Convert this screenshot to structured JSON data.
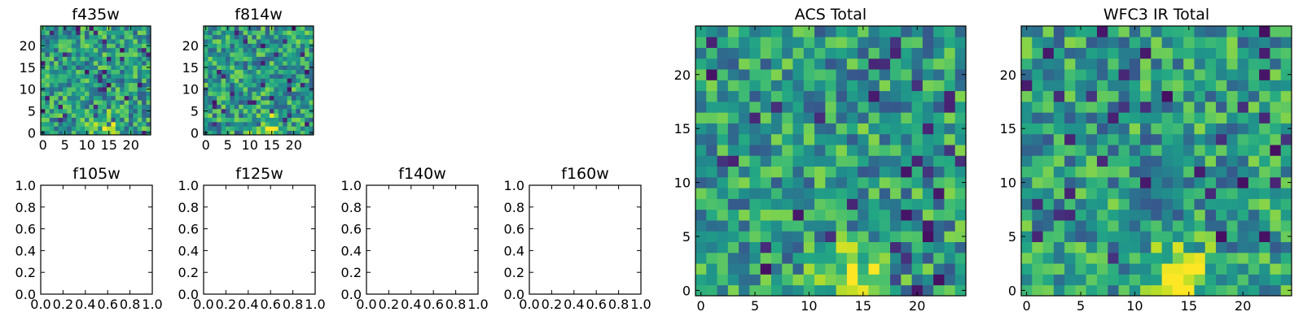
{
  "chart_data": [
    {
      "type": "heatmap",
      "title": "f435w",
      "xlim": [
        -0.5,
        24.5
      ],
      "ylim": [
        -0.5,
        24.5
      ],
      "xticks": [
        0,
        5,
        10,
        15,
        20
      ],
      "yticks": [
        0,
        5,
        10,
        15,
        20
      ],
      "xtick_labels": [
        "0",
        "5",
        "10",
        "15",
        "20"
      ],
      "ytick_labels": [
        "0",
        "5",
        "10",
        "15",
        "20"
      ],
      "grid_size": [
        25,
        25
      ],
      "colormap": "viridis"
    },
    {
      "type": "heatmap",
      "title": "f814w",
      "xlim": [
        -0.5,
        24.5
      ],
      "ylim": [
        -0.5,
        24.5
      ],
      "xticks": [
        0,
        5,
        10,
        15,
        20
      ],
      "yticks": [
        0,
        5,
        10,
        15,
        20
      ],
      "xtick_labels": [
        "0",
        "5",
        "10",
        "15",
        "20"
      ],
      "ytick_labels": [
        "0",
        "5",
        "10",
        "15",
        "20"
      ],
      "grid_size": [
        25,
        25
      ],
      "colormap": "viridis"
    },
    {
      "type": "heatmap",
      "title": "f105w",
      "xlim": [
        0,
        1
      ],
      "ylim": [
        0,
        1
      ],
      "xticks": [
        0,
        0.2,
        0.4,
        0.6,
        0.8,
        1.0
      ],
      "yticks": [
        0,
        0.2,
        0.4,
        0.6,
        0.8,
        1.0
      ],
      "xtick_labels": [
        "0.0",
        "0.2",
        "0.4",
        "0.6",
        "0.8",
        "1.0"
      ],
      "ytick_labels": [
        "0.0",
        "0.2",
        "0.4",
        "0.6",
        "0.8",
        "1.0"
      ],
      "empty": true
    },
    {
      "type": "heatmap",
      "title": "f125w",
      "xlim": [
        0,
        1
      ],
      "ylim": [
        0,
        1
      ],
      "xticks": [
        0,
        0.2,
        0.4,
        0.6,
        0.8,
        1.0
      ],
      "yticks": [
        0,
        0.2,
        0.4,
        0.6,
        0.8,
        1.0
      ],
      "xtick_labels": [
        "0.0",
        "0.2",
        "0.4",
        "0.6",
        "0.8",
        "1.0"
      ],
      "ytick_labels": [
        "0.0",
        "0.2",
        "0.4",
        "0.6",
        "0.8",
        "1.0"
      ],
      "empty": true
    },
    {
      "type": "heatmap",
      "title": "f140w",
      "xlim": [
        0,
        1
      ],
      "ylim": [
        0,
        1
      ],
      "xticks": [
        0,
        0.2,
        0.4,
        0.6,
        0.8,
        1.0
      ],
      "yticks": [
        0,
        0.2,
        0.4,
        0.6,
        0.8,
        1.0
      ],
      "xtick_labels": [
        "0.0",
        "0.2",
        "0.4",
        "0.6",
        "0.8",
        "1.0"
      ],
      "ytick_labels": [
        "0.0",
        "0.2",
        "0.4",
        "0.6",
        "0.8",
        "1.0"
      ],
      "empty": true
    },
    {
      "type": "heatmap",
      "title": "f160w",
      "xlim": [
        0,
        1
      ],
      "ylim": [
        0,
        1
      ],
      "xticks": [
        0,
        0.2,
        0.4,
        0.6,
        0.8,
        1.0
      ],
      "yticks": [
        0,
        0.2,
        0.4,
        0.6,
        0.8,
        1.0
      ],
      "xtick_labels": [
        "0.0",
        "0.2",
        "0.4",
        "0.6",
        "0.8",
        "1.0"
      ],
      "ytick_labels": [
        "0.0",
        "0.2",
        "0.4",
        "0.6",
        "0.8",
        "1.0"
      ],
      "empty": true
    },
    {
      "type": "heatmap",
      "title": "ACS Total",
      "xlim": [
        -0.5,
        24.5
      ],
      "ylim": [
        -0.5,
        24.5
      ],
      "xticks": [
        0,
        5,
        10,
        15,
        20
      ],
      "yticks": [
        0,
        5,
        10,
        15,
        20
      ],
      "xtick_labels": [
        "0",
        "5",
        "10",
        "15",
        "20"
      ],
      "ytick_labels": [
        "0",
        "5",
        "10",
        "15",
        "20"
      ],
      "grid_size": [
        25,
        25
      ],
      "colormap": "viridis"
    },
    {
      "type": "heatmap",
      "title": "WFC3 IR Total",
      "xlim": [
        -0.5,
        24.5
      ],
      "ylim": [
        -0.5,
        24.5
      ],
      "xticks": [
        0,
        5,
        10,
        15,
        20
      ],
      "yticks": [
        0,
        5,
        10,
        15,
        20
      ],
      "xtick_labels": [
        "0",
        "5",
        "10",
        "15",
        "20"
      ],
      "ytick_labels": [
        "0",
        "5",
        "10",
        "15",
        "20"
      ],
      "grid_size": [
        25,
        25
      ],
      "colormap": "viridis"
    }
  ]
}
